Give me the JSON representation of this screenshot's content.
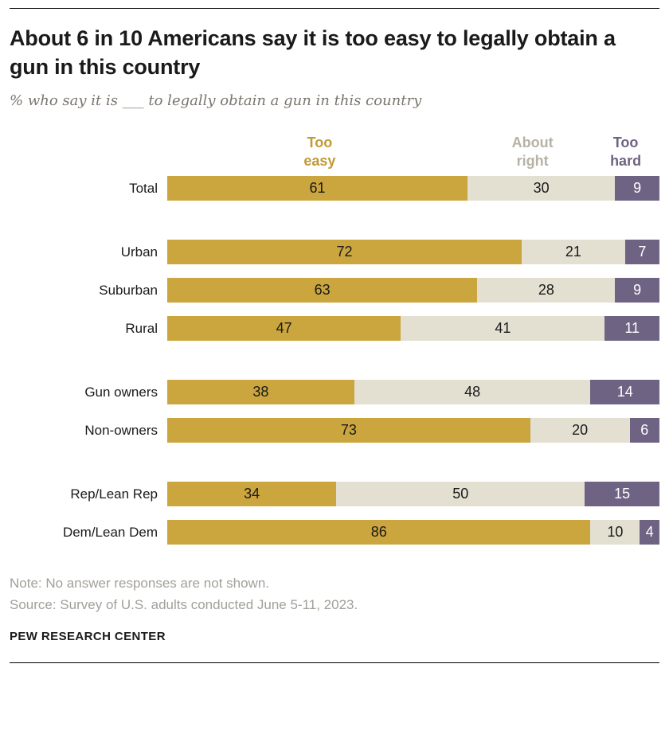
{
  "header": {
    "title": "About 6 in 10 Americans say it is too easy to legally obtain a gun in this country",
    "subtitle": "% who say it is ___ to legally obtain a gun in this country"
  },
  "chart_data": {
    "type": "bar",
    "stacked": true,
    "orientation": "horizontal",
    "unit": "percent",
    "legend": [
      {
        "label": "Too easy",
        "color": "#cba53e",
        "label_color": "#c19a35",
        "value_text_color": "#1a1a1a"
      },
      {
        "label": "About right",
        "color": "#e3e0d2",
        "label_color": "#b6b2a4",
        "value_text_color": "#1a1a1a"
      },
      {
        "label": "Too hard",
        "color": "#6e6383",
        "label_color": "#6e6383",
        "value_text_color": "#ffffff"
      }
    ],
    "groups": [
      {
        "rows": [
          {
            "category": "Total",
            "values": [
              61,
              30,
              9
            ]
          }
        ]
      },
      {
        "rows": [
          {
            "category": "Urban",
            "values": [
              72,
              21,
              7
            ]
          },
          {
            "category": "Suburban",
            "values": [
              63,
              28,
              9
            ]
          },
          {
            "category": "Rural",
            "values": [
              47,
              41,
              11
            ]
          }
        ]
      },
      {
        "rows": [
          {
            "category": "Gun owners",
            "values": [
              38,
              48,
              14
            ]
          },
          {
            "category": "Non-owners",
            "values": [
              73,
              20,
              6
            ]
          }
        ]
      },
      {
        "rows": [
          {
            "category": "Rep/Lean Rep",
            "values": [
              34,
              50,
              15
            ]
          },
          {
            "category": "Dem/Lean Dem",
            "values": [
              86,
              10,
              4
            ]
          }
        ]
      }
    ]
  },
  "footer": {
    "note": "Note: No answer responses are not shown.",
    "source": "Source: Survey of U.S. adults conducted June 5-11, 2023.",
    "brand": "PEW RESEARCH CENTER"
  }
}
